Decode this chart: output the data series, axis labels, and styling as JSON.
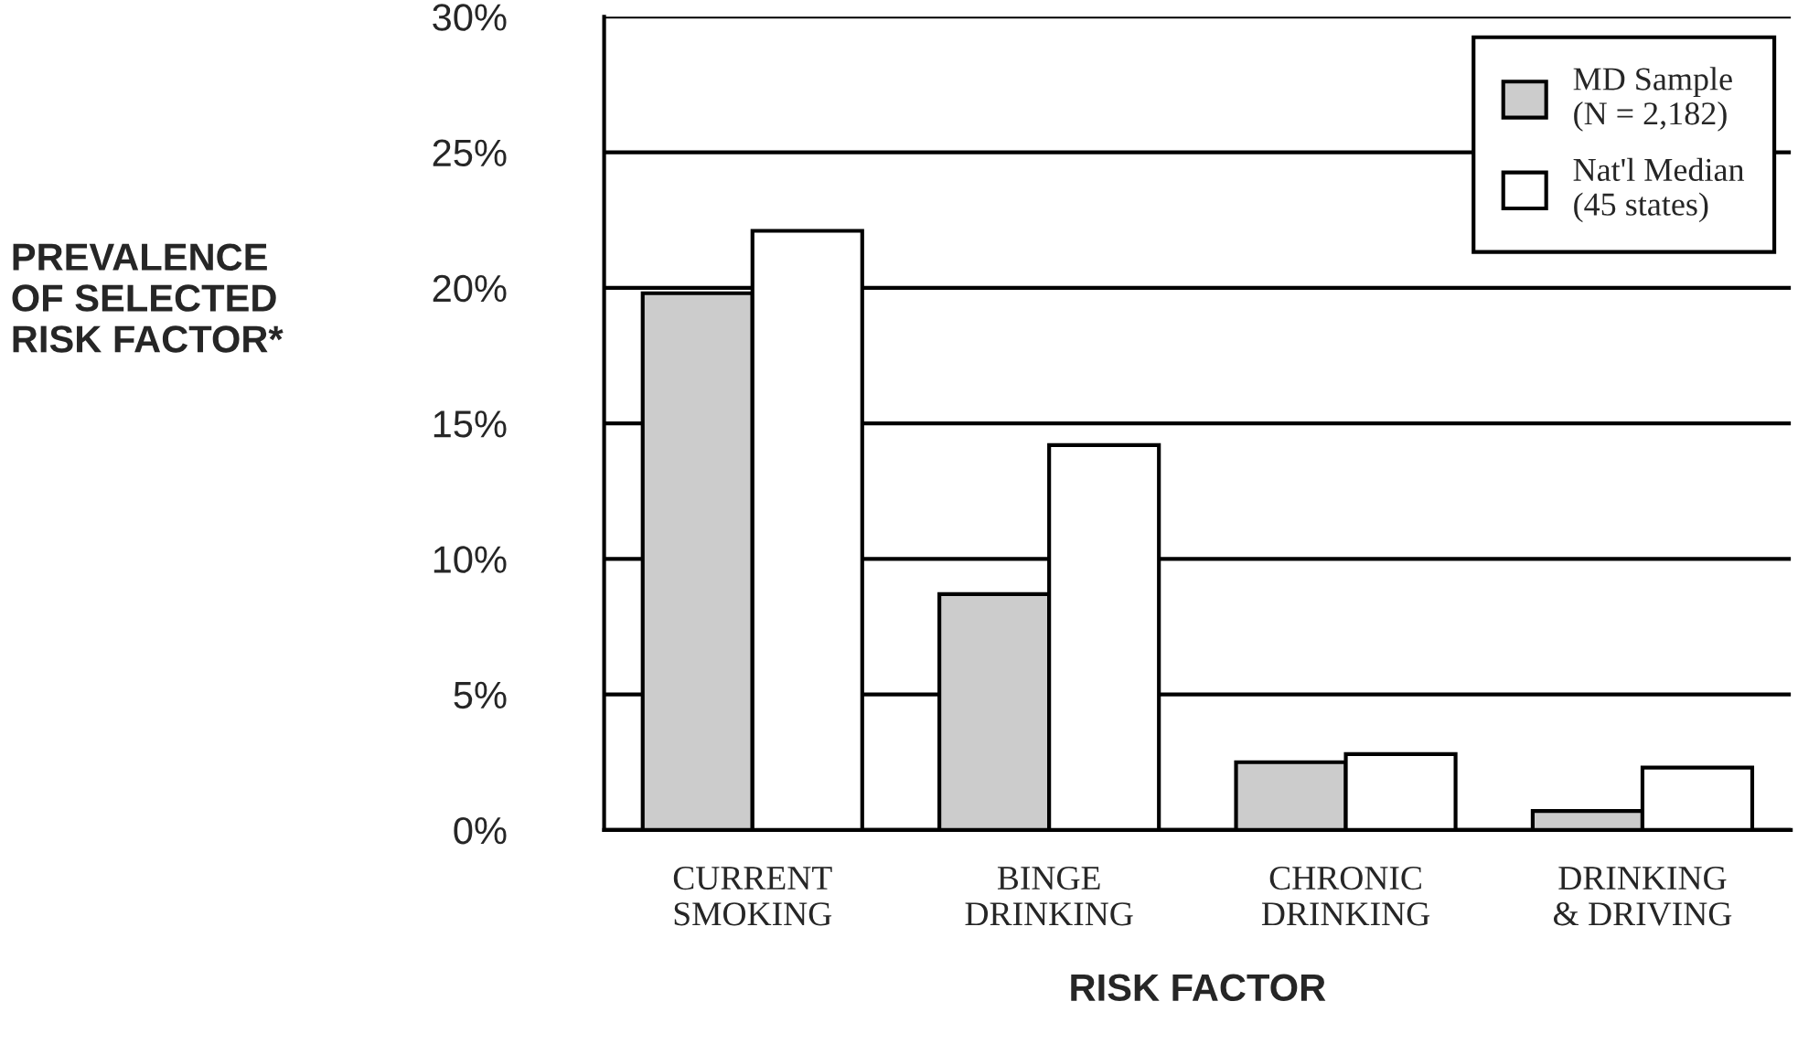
{
  "chart_data": {
    "type": "bar",
    "xlabel": "RISK FACTOR",
    "ylabel": "PREVALENCE\nOF SELECTED\nRISK FACTOR*",
    "categories": [
      "CURRENT\nSMOKING",
      "BINGE\nDRINKING",
      "CHRONIC\nDRINKING",
      "DRINKING\n& DRIVING"
    ],
    "series": [
      {
        "name": "MD Sample\n(N = 2,182)",
        "color": "#cccccc",
        "values": [
          19.8,
          8.7,
          2.5,
          0.7
        ]
      },
      {
        "name": "Nat'l Median\n(45 states)",
        "color": "#ffffff",
        "values": [
          22.1,
          14.2,
          2.8,
          2.3
        ]
      }
    ],
    "ylim": [
      0,
      30
    ],
    "yticks": [
      {
        "value": 0,
        "label": "0%"
      },
      {
        "value": 5,
        "label": "5%"
      },
      {
        "value": 10,
        "label": "10%"
      },
      {
        "value": 15,
        "label": "15%"
      },
      {
        "value": 20,
        "label": "20%"
      },
      {
        "value": 25,
        "label": "25%"
      },
      {
        "value": 30,
        "label": "30%"
      }
    ],
    "grid": "y",
    "legend": "top right"
  }
}
